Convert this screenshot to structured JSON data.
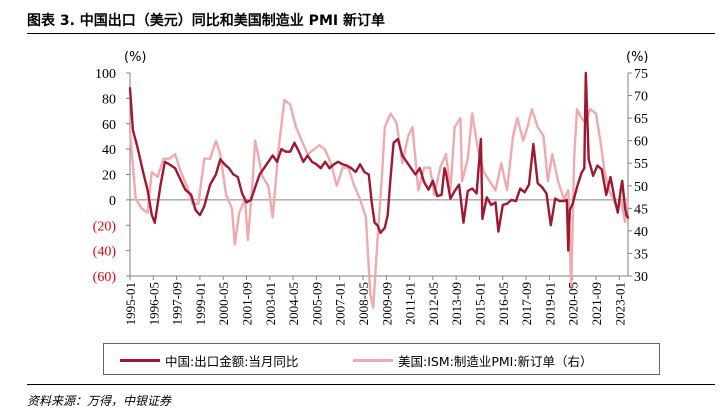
{
  "figure": {
    "title": "图表 3. 中国出口（美元）同比和美国制造业 PMI 新订单",
    "source": "资料来源：万得，中银证券"
  },
  "colors": {
    "series_1": "#a0182f",
    "series_2": "#f0a9ae",
    "negative_tick": "#e00000",
    "axis": "#808080"
  },
  "chart_data": {
    "type": "line",
    "y_left_unit": "(%)",
    "y_right_unit": "(%)",
    "y_left_range": [
      -60,
      100
    ],
    "y_right_range": [
      30,
      75
    ],
    "y_left_ticks": [
      "100",
      "80",
      "60",
      "40",
      "20",
      "0",
      "(20)",
      "(40)",
      "(60)"
    ],
    "y_right_ticks": [
      "75",
      "70",
      "65",
      "60",
      "55",
      "50",
      "45",
      "40",
      "35",
      "30"
    ],
    "x_range": [
      "1995-01",
      "2023-07"
    ],
    "x_ticks": [
      "1995-01",
      "1996-05",
      "1997-09",
      "1999-01",
      "2000-05",
      "2001-09",
      "2003-01",
      "2004-05",
      "2005-09",
      "2007-01",
      "2008-05",
      "2009-09",
      "2011-01",
      "2012-05",
      "2013-09",
      "2015-01",
      "2016-05",
      "2017-09",
      "2019-01",
      "2020-05",
      "2021-09",
      "2023-01"
    ],
    "grid": false,
    "legend_position": "bottom",
    "series": [
      {
        "name": "中国:出口金额:当月同比",
        "axis": "left",
        "points": [
          [
            "1995-01",
            88
          ],
          [
            "1995-03",
            55
          ],
          [
            "1995-06",
            42
          ],
          [
            "1995-10",
            22
          ],
          [
            "1996-01",
            8
          ],
          [
            "1996-04",
            -12
          ],
          [
            "1996-06",
            -18
          ],
          [
            "1996-10",
            12
          ],
          [
            "1997-01",
            30
          ],
          [
            "1997-04",
            28
          ],
          [
            "1997-08",
            25
          ],
          [
            "1997-12",
            15
          ],
          [
            "1998-03",
            8
          ],
          [
            "1998-07",
            4
          ],
          [
            "1998-10",
            -8
          ],
          [
            "1999-01",
            -12
          ],
          [
            "1999-04",
            -5
          ],
          [
            "1999-08",
            12
          ],
          [
            "1999-12",
            20
          ],
          [
            "2000-03",
            32
          ],
          [
            "2000-06",
            28
          ],
          [
            "2000-09",
            25
          ],
          [
            "2000-12",
            20
          ],
          [
            "2001-03",
            18
          ],
          [
            "2001-06",
            5
          ],
          [
            "2001-09",
            -2
          ],
          [
            "2001-12",
            0
          ],
          [
            "2002-03",
            10
          ],
          [
            "2002-06",
            20
          ],
          [
            "2002-09",
            25
          ],
          [
            "2002-12",
            30
          ],
          [
            "2003-03",
            35
          ],
          [
            "2003-06",
            30
          ],
          [
            "2003-09",
            40
          ],
          [
            "2003-12",
            38
          ],
          [
            "2004-03",
            38
          ],
          [
            "2004-06",
            45
          ],
          [
            "2004-09",
            38
          ],
          [
            "2004-12",
            30
          ],
          [
            "2005-03",
            35
          ],
          [
            "2005-06",
            30
          ],
          [
            "2005-09",
            28
          ],
          [
            "2005-12",
            25
          ],
          [
            "2006-03",
            30
          ],
          [
            "2006-06",
            25
          ],
          [
            "2006-09",
            28
          ],
          [
            "2006-12",
            30
          ],
          [
            "2007-03",
            28
          ],
          [
            "2007-06",
            27
          ],
          [
            "2007-09",
            25
          ],
          [
            "2007-12",
            22
          ],
          [
            "2008-03",
            28
          ],
          [
            "2008-06",
            22
          ],
          [
            "2008-09",
            20
          ],
          [
            "2008-11",
            -2
          ],
          [
            "2009-01",
            -18
          ],
          [
            "2009-03",
            -20
          ],
          [
            "2009-05",
            -26
          ],
          [
            "2009-08",
            -22
          ],
          [
            "2009-10",
            -12
          ],
          [
            "2009-12",
            18
          ],
          [
            "2010-02",
            45
          ],
          [
            "2010-05",
            48
          ],
          [
            "2010-08",
            35
          ],
          [
            "2010-11",
            30
          ],
          [
            "2011-02",
            25
          ],
          [
            "2011-05",
            20
          ],
          [
            "2011-08",
            25
          ],
          [
            "2011-11",
            14
          ],
          [
            "2012-02",
            8
          ],
          [
            "2012-05",
            15
          ],
          [
            "2012-08",
            3
          ],
          [
            "2012-11",
            4
          ],
          [
            "2013-01",
            25
          ],
          [
            "2013-02",
            21
          ],
          [
            "2013-05",
            1
          ],
          [
            "2013-08",
            7
          ],
          [
            "2013-11",
            12
          ],
          [
            "2014-02",
            -18
          ],
          [
            "2014-05",
            7
          ],
          [
            "2014-08",
            9
          ],
          [
            "2014-11",
            5
          ],
          [
            "2015-02",
            48
          ],
          [
            "2015-03",
            -15
          ],
          [
            "2015-06",
            2
          ],
          [
            "2015-09",
            -4
          ],
          [
            "2015-12",
            -2
          ],
          [
            "2016-02",
            -25
          ],
          [
            "2016-05",
            -4
          ],
          [
            "2016-08",
            -3
          ],
          [
            "2016-11",
            0
          ],
          [
            "2017-02",
            -1
          ],
          [
            "2017-05",
            9
          ],
          [
            "2017-08",
            6
          ],
          [
            "2017-11",
            12
          ],
          [
            "2018-02",
            44
          ],
          [
            "2018-05",
            13
          ],
          [
            "2018-08",
            10
          ],
          [
            "2018-11",
            5
          ],
          [
            "2019-02",
            -20
          ],
          [
            "2019-05",
            1
          ],
          [
            "2019-08",
            -1
          ],
          [
            "2019-11",
            -1
          ],
          [
            "2020-01",
            0
          ],
          [
            "2020-03",
            -8
          ],
          [
            "2020-02",
            -40
          ],
          [
            "2020-05",
            -3
          ],
          [
            "2020-08",
            10
          ],
          [
            "2020-11",
            21
          ],
          [
            "2021-01",
            25
          ],
          [
            "2021-02",
            100
          ],
          [
            "2021-04",
            32
          ],
          [
            "2021-07",
            19
          ],
          [
            "2021-10",
            27
          ],
          [
            "2022-01",
            24
          ],
          [
            "2022-04",
            4
          ],
          [
            "2022-07",
            18
          ],
          [
            "2022-10",
            -0.3
          ],
          [
            "2022-12",
            -10
          ],
          [
            "2023-02",
            8
          ],
          [
            "2023-03",
            15
          ],
          [
            "2023-05",
            -7
          ],
          [
            "2023-06",
            -12
          ],
          [
            "2023-07",
            -14
          ]
        ]
      },
      {
        "name": "美国:ISM:制造业PMI:新订单（右）",
        "axis": "right",
        "points": [
          [
            "1995-01",
            62
          ],
          [
            "1995-05",
            47
          ],
          [
            "1995-09",
            45
          ],
          [
            "1996-01",
            44
          ],
          [
            "1996-04",
            53
          ],
          [
            "1996-08",
            52
          ],
          [
            "1996-12",
            56
          ],
          [
            "1997-04",
            56
          ],
          [
            "1997-08",
            57
          ],
          [
            "1997-12",
            53
          ],
          [
            "1998-04",
            50
          ],
          [
            "1998-08",
            46
          ],
          [
            "1998-12",
            46
          ],
          [
            "1999-04",
            56
          ],
          [
            "1999-08",
            56
          ],
          [
            "1999-12",
            60
          ],
          [
            "2000-03",
            57
          ],
          [
            "2000-07",
            48
          ],
          [
            "2000-11",
            45
          ],
          [
            "2001-01",
            37
          ],
          [
            "2001-04",
            44
          ],
          [
            "2001-08",
            47
          ],
          [
            "2001-10",
            38
          ],
          [
            "2002-01",
            50
          ],
          [
            "2002-03",
            60
          ],
          [
            "2002-08",
            52
          ],
          [
            "2002-12",
            50
          ],
          [
            "2003-03",
            43
          ],
          [
            "2003-07",
            58
          ],
          [
            "2003-11",
            69
          ],
          [
            "2004-03",
            68
          ],
          [
            "2004-07",
            63
          ],
          [
            "2004-11",
            60
          ],
          [
            "2005-03",
            57
          ],
          [
            "2005-07",
            58
          ],
          [
            "2005-11",
            59
          ],
          [
            "2006-03",
            58
          ],
          [
            "2006-07",
            55
          ],
          [
            "2006-11",
            50
          ],
          [
            "2007-03",
            54
          ],
          [
            "2007-07",
            54
          ],
          [
            "2007-11",
            50
          ],
          [
            "2008-03",
            47
          ],
          [
            "2008-07",
            43
          ],
          [
            "2008-10",
            26
          ],
          [
            "2008-12",
            23
          ],
          [
            "2009-03",
            38
          ],
          [
            "2009-06",
            52
          ],
          [
            "2009-08",
            63
          ],
          [
            "2009-12",
            66
          ],
          [
            "2010-04",
            64
          ],
          [
            "2010-08",
            55
          ],
          [
            "2010-12",
            61
          ],
          [
            "2011-03",
            63
          ],
          [
            "2011-07",
            49
          ],
          [
            "2011-11",
            54
          ],
          [
            "2012-03",
            54
          ],
          [
            "2012-06",
            48
          ],
          [
            "2012-10",
            54
          ],
          [
            "2013-02",
            57
          ],
          [
            "2013-05",
            49
          ],
          [
            "2013-08",
            63
          ],
          [
            "2013-12",
            65
          ],
          [
            "2014-01",
            51
          ],
          [
            "2014-05",
            56
          ],
          [
            "2014-08",
            66
          ],
          [
            "2014-12",
            58
          ],
          [
            "2015-04",
            53
          ],
          [
            "2015-08",
            51
          ],
          [
            "2015-12",
            49
          ],
          [
            "2016-04",
            55
          ],
          [
            "2016-08",
            49
          ],
          [
            "2016-12",
            61
          ],
          [
            "2017-03",
            65
          ],
          [
            "2017-07",
            60
          ],
          [
            "2017-10",
            63
          ],
          [
            "2018-01",
            67
          ],
          [
            "2018-05",
            63
          ],
          [
            "2018-09",
            61
          ],
          [
            "2018-12",
            51
          ],
          [
            "2019-03",
            57
          ],
          [
            "2019-07",
            51
          ],
          [
            "2019-11",
            47
          ],
          [
            "2020-02",
            49
          ],
          [
            "2020-04",
            27
          ],
          [
            "2020-06",
            56
          ],
          [
            "2020-08",
            67
          ],
          [
            "2020-11",
            65
          ],
          [
            "2021-02",
            64
          ],
          [
            "2021-05",
            67
          ],
          [
            "2021-09",
            66
          ],
          [
            "2021-12",
            60
          ],
          [
            "2022-03",
            53
          ],
          [
            "2022-06",
            49
          ],
          [
            "2022-09",
            47
          ],
          [
            "2022-12",
            45
          ],
          [
            "2023-02",
            47
          ],
          [
            "2023-05",
            42
          ],
          [
            "2023-07",
            47
          ]
        ]
      }
    ]
  }
}
